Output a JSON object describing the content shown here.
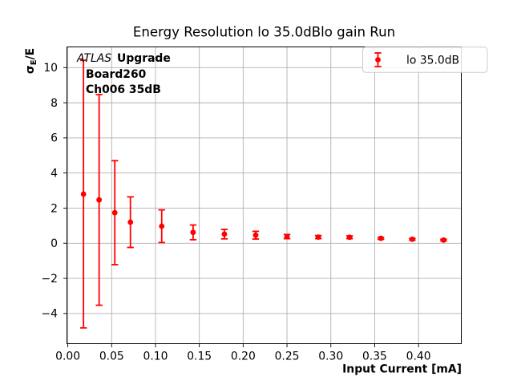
{
  "figure": {
    "background": "#ffffff",
    "frame_color": "#000000"
  },
  "annotation": {
    "line1_brand": "ATLAS",
    "line1_rest": "Upgrade",
    "line2": "Board260",
    "line3": "Ch006 35dB"
  },
  "legend": {
    "label": "lo 35.0dB",
    "border_color": "#cccccc",
    "background": "#ffffff"
  },
  "chart_data": {
    "type": "scatter",
    "title": "Energy Resolution lo 35.0dBlo gain Run",
    "xlabel": "Input Current [mA]",
    "ylabel": "σE/E",
    "ylabel_parts": {
      "main": "σ",
      "sub": "E",
      "rest": "/E"
    },
    "xlim": [
      -0.001,
      0.4488
    ],
    "ylim": [
      -5.72,
      11.18
    ],
    "grid": true,
    "grid_color": "#b0b0b0",
    "legend_position": "upper right",
    "xticks": {
      "values": [
        0.0,
        0.05,
        0.1,
        0.15,
        0.2,
        0.25,
        0.3,
        0.35,
        0.4
      ],
      "labels": [
        "0.00",
        "0.05",
        "0.10",
        "0.15",
        "0.20",
        "0.25",
        "0.30",
        "0.35",
        "0.40"
      ]
    },
    "yticks": {
      "values": [
        -4,
        -2,
        0,
        2,
        4,
        6,
        8,
        10
      ],
      "labels": [
        "−4",
        "−2",
        "0",
        "2",
        "4",
        "6",
        "8",
        "10"
      ]
    },
    "series": [
      {
        "name": "lo 35.0dB",
        "color": "#ff0000",
        "marker": "circle",
        "x": [
          0.0179,
          0.0357,
          0.0536,
          0.0714,
          0.1071,
          0.1429,
          0.1786,
          0.2143,
          0.25,
          0.2857,
          0.3214,
          0.3571,
          0.3929,
          0.4286
        ],
        "y": [
          2.8,
          2.47,
          1.74,
          1.2,
          0.97,
          0.62,
          0.52,
          0.46,
          0.38,
          0.35,
          0.34,
          0.28,
          0.23,
          0.18
        ],
        "yerr": [
          7.62,
          6.0,
          2.96,
          1.44,
          0.93,
          0.42,
          0.27,
          0.22,
          0.12,
          0.09,
          0.08,
          0.06,
          0.05,
          0.05
        ]
      }
    ]
  }
}
